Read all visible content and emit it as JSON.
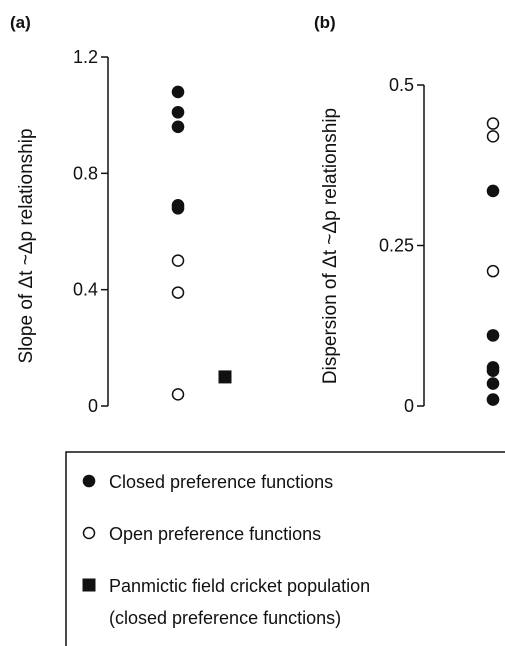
{
  "chart_data": [
    {
      "panel_label": "(a)",
      "type": "scatter",
      "ylabel": "Slope of Δt ~Δp relationship",
      "ylim": [
        0,
        1.2
      ],
      "yticks": [
        "0",
        "0.4",
        "0.8",
        "1.2"
      ],
      "ytick_values": [
        0,
        0.4,
        0.8,
        1.2
      ],
      "series": [
        {
          "marker": "filled-circle",
          "x": [
            1,
            1,
            1,
            1,
            1
          ],
          "y": [
            1.08,
            1.01,
            0.96,
            0.69,
            0.68
          ]
        },
        {
          "marker": "open-circle",
          "x": [
            1,
            1,
            1
          ],
          "y": [
            0.5,
            0.39,
            0.04
          ]
        },
        {
          "marker": "filled-square",
          "x": [
            2
          ],
          "y": [
            0.1
          ]
        }
      ]
    },
    {
      "panel_label": "(b)",
      "type": "scatter",
      "ylabel": "Dispersion of Δt ~Δp relationship",
      "ylim": [
        0,
        0.5
      ],
      "yticks": [
        "0",
        "0.25",
        "0.5"
      ],
      "ytick_values": [
        0,
        0.25,
        0.5
      ],
      "series": [
        {
          "marker": "filled-circle",
          "x": [
            1,
            1,
            1,
            1,
            1,
            1
          ],
          "y": [
            0.335,
            0.11,
            0.06,
            0.055,
            0.035,
            0.01
          ]
        },
        {
          "marker": "open-circle",
          "x": [
            1,
            1,
            1
          ],
          "y": [
            0.44,
            0.42,
            0.21
          ]
        }
      ]
    }
  ],
  "legend": {
    "items": [
      {
        "marker": "filled-circle",
        "lines": [
          "Closed preference functions"
        ]
      },
      {
        "marker": "open-circle",
        "lines": [
          "Open preference functions"
        ]
      },
      {
        "marker": "filled-square",
        "lines": [
          "Panmictic field cricket population",
          "(closed preference functions)"
        ]
      }
    ]
  }
}
